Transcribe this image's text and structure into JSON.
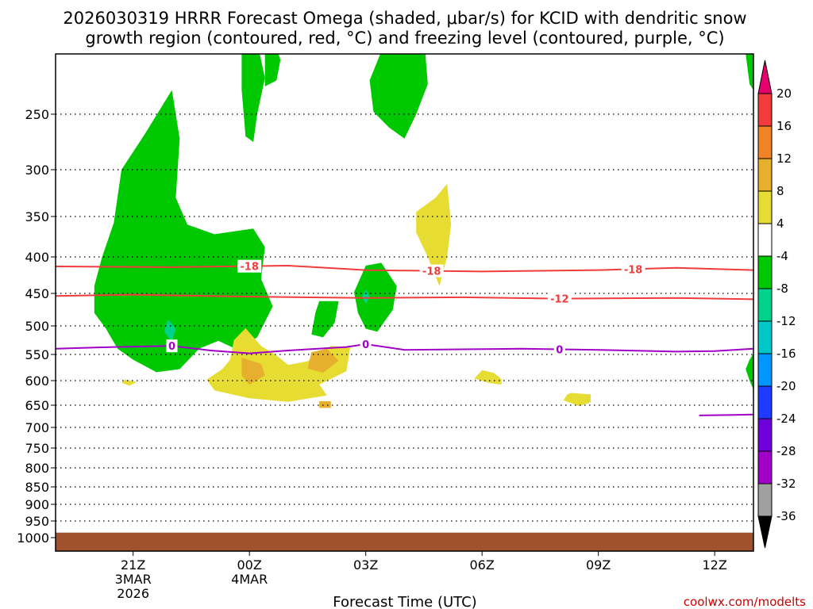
{
  "title_line1": "2026030319 HRRR Forecast Omega (shaded, μbar/s) for KCID with dendritic snow",
  "title_line2": "growth region (contoured, red, °C) and freezing level (contoured, purple, °C)",
  "xlabel": "Forecast Time (UTC)",
  "credit": "coolwx.com/modelts",
  "chart_data": {
    "type": "heatmap",
    "x_ticks": [
      {
        "label": "21Z",
        "sub1": "3MAR",
        "sub2": "2026",
        "hour": 21
      },
      {
        "label": "00Z",
        "sub1": "4MAR",
        "sub2": "",
        "hour": 24
      },
      {
        "label": "03Z",
        "sub1": "",
        "sub2": "",
        "hour": 27
      },
      {
        "label": "06Z",
        "sub1": "",
        "sub2": "",
        "hour": 30
      },
      {
        "label": "09Z",
        "sub1": "",
        "sub2": "",
        "hour": 33
      },
      {
        "label": "12Z",
        "sub1": "",
        "sub2": "",
        "hour": 36
      }
    ],
    "xlim": [
      19,
      37
    ],
    "y_ticks": [
      250,
      300,
      350,
      400,
      450,
      500,
      550,
      600,
      650,
      700,
      750,
      800,
      850,
      900,
      950,
      1000
    ],
    "ylim_hPa": [
      1000,
      200
    ],
    "colorbar": {
      "labels": [
        "20",
        "16",
        "12",
        "8",
        "4",
        "-4",
        "-8",
        "-12",
        "-16",
        "-20",
        "-24",
        "-28",
        "-32",
        "-36"
      ],
      "colors": [
        "#f03c3c",
        "#f08228",
        "#e6af2d",
        "#e6dc32",
        "#ffffff",
        "#00c800",
        "#00d28c",
        "#00c8c8",
        "#0096ff",
        "#1e3cff",
        "#6e00dc",
        "#a000c8",
        "#a0a0a0"
      ],
      "top_arrow": "#e6006e",
      "bottom_arrow": "#000000"
    },
    "omega_regions": [
      {
        "level": "-8",
        "color": "#00c800",
        "points": [
          [
            23.0,
            410
          ],
          [
            22.8,
            428
          ],
          [
            23.1,
            445
          ],
          [
            23.5,
            465
          ],
          [
            23.9,
            445
          ],
          [
            24.1,
            415
          ],
          [
            23.9,
            392
          ],
          [
            23.2,
            390
          ]
        ]
      },
      {
        "level": "-8",
        "color": "#00c800",
        "points": [
          [
            20.5,
            358
          ],
          [
            20.7,
            300
          ],
          [
            21.3,
            268
          ],
          [
            22.0,
            230
          ],
          [
            22.2,
            272
          ],
          [
            22.1,
            330
          ],
          [
            22.4,
            360
          ],
          [
            23.1,
            372
          ],
          [
            24.1,
            365
          ],
          [
            24.4,
            388
          ],
          [
            24.3,
            430
          ],
          [
            24.6,
            470
          ],
          [
            24.2,
            520
          ],
          [
            23.7,
            542
          ],
          [
            23.2,
            526
          ],
          [
            22.7,
            540
          ],
          [
            22.2,
            578
          ],
          [
            21.6,
            584
          ],
          [
            21.0,
            560
          ],
          [
            20.6,
            540
          ],
          [
            20.3,
            505
          ],
          [
            20.0,
            480
          ],
          [
            20.0,
            440
          ],
          [
            20.2,
            400
          ]
        ]
      },
      {
        "level": "-8",
        "color": "#00c800",
        "points": [
          [
            23.9,
            140
          ],
          [
            24.1,
            150
          ],
          [
            24.2,
            190
          ],
          [
            24.4,
            220
          ],
          [
            24.2,
            250
          ],
          [
            24.1,
            275
          ],
          [
            23.9,
            270
          ],
          [
            23.8,
            230
          ],
          [
            23.8,
            180
          ]
        ]
      },
      {
        "level": "-8",
        "color": "#00c800",
        "points": [
          [
            24.7,
            195
          ],
          [
            24.8,
            205
          ],
          [
            24.7,
            222
          ],
          [
            24.4,
            227
          ],
          [
            24.4,
            200
          ]
        ]
      },
      {
        "level": "-8",
        "color": "#00c800",
        "points": [
          [
            25.8,
            462
          ],
          [
            26.3,
            462
          ],
          [
            26.2,
            495
          ],
          [
            25.9,
            520
          ],
          [
            25.6,
            515
          ],
          [
            25.7,
            480
          ]
        ]
      },
      {
        "level": "-8",
        "color": "#00c800",
        "points": [
          [
            26.7,
            448
          ],
          [
            27.0,
            412
          ],
          [
            27.4,
            408
          ],
          [
            27.8,
            440
          ],
          [
            27.7,
            475
          ],
          [
            27.3,
            510
          ],
          [
            27.0,
            505
          ],
          [
            26.8,
            480
          ]
        ]
      },
      {
        "level": "-8",
        "color": "#00c800",
        "points": [
          [
            27.1,
            222
          ],
          [
            27.6,
            182
          ],
          [
            28.2,
            150
          ],
          [
            28.5,
            185
          ],
          [
            28.6,
            225
          ],
          [
            28.3,
            250
          ],
          [
            28.0,
            272
          ],
          [
            27.6,
            262
          ],
          [
            27.2,
            248
          ]
        ]
      },
      {
        "level": "-8",
        "color": "#00c800",
        "points": [
          [
            36.9,
            180
          ],
          [
            37.0,
            180
          ],
          [
            37.0,
            230
          ],
          [
            36.9,
            225
          ],
          [
            36.8,
            200
          ]
        ]
      },
      {
        "level": "-8",
        "color": "#00c800",
        "points": [
          [
            37.0,
            548
          ],
          [
            36.9,
            560
          ],
          [
            36.8,
            578
          ],
          [
            36.9,
            600
          ],
          [
            37.0,
            618
          ]
        ]
      },
      {
        "level": "-12",
        "color": "#00d28c",
        "points": [
          [
            21.9,
            490
          ],
          [
            22.1,
            505
          ],
          [
            22.0,
            528
          ],
          [
            21.8,
            510
          ]
        ]
      },
      {
        "level": "-12",
        "color": "#00d28c",
        "points": [
          [
            27.0,
            445
          ],
          [
            27.1,
            455
          ],
          [
            27.0,
            466
          ],
          [
            26.9,
            456
          ]
        ]
      },
      {
        "level": "4",
        "color": "#e6dc32",
        "points": [
          [
            20.8,
            598
          ],
          [
            21.1,
            603
          ],
          [
            20.9,
            610
          ],
          [
            20.7,
            604
          ]
        ]
      },
      {
        "level": "4",
        "color": "#e6dc32",
        "points": [
          [
            23.9,
            504
          ],
          [
            24.3,
            535
          ],
          [
            24.7,
            552
          ],
          [
            25.0,
            570
          ],
          [
            25.5,
            563
          ],
          [
            26.1,
            535
          ],
          [
            26.6,
            538
          ],
          [
            26.5,
            582
          ],
          [
            25.8,
            608
          ],
          [
            26.0,
            630
          ],
          [
            25.0,
            643
          ],
          [
            24.0,
            636
          ],
          [
            23.1,
            620
          ],
          [
            22.9,
            598
          ],
          [
            23.3,
            578
          ],
          [
            23.5,
            560
          ],
          [
            23.6,
            525
          ]
        ]
      },
      {
        "level": "4",
        "color": "#e6dc32",
        "points": [
          [
            28.3,
            345
          ],
          [
            28.8,
            330
          ],
          [
            29.1,
            315
          ],
          [
            29.2,
            360
          ],
          [
            29.1,
            400
          ],
          [
            28.9,
            440
          ],
          [
            28.6,
            400
          ],
          [
            28.3,
            370
          ]
        ]
      },
      {
        "level": "4",
        "color": "#e6dc32",
        "points": [
          [
            30.0,
            580
          ],
          [
            30.3,
            585
          ],
          [
            30.5,
            597
          ],
          [
            30.5,
            608
          ],
          [
            30.2,
            605
          ],
          [
            29.8,
            596
          ]
        ]
      },
      {
        "level": "4",
        "color": "#e6dc32",
        "points": [
          [
            32.3,
            625
          ],
          [
            32.8,
            628
          ],
          [
            32.8,
            644
          ],
          [
            32.5,
            652
          ],
          [
            32.1,
            640
          ],
          [
            32.2,
            628
          ]
        ]
      },
      {
        "level": "8",
        "color": "#e6af2d",
        "points": [
          [
            23.8,
            556
          ],
          [
            24.3,
            568
          ],
          [
            24.4,
            590
          ],
          [
            24.0,
            608
          ],
          [
            23.8,
            590
          ]
        ]
      },
      {
        "level": "8",
        "color": "#e6af2d",
        "points": [
          [
            25.6,
            546
          ],
          [
            26.0,
            540
          ],
          [
            26.3,
            562
          ],
          [
            25.9,
            585
          ],
          [
            25.5,
            577
          ]
        ]
      },
      {
        "level": "8",
        "color": "#e6af2d",
        "points": [
          [
            25.8,
            642
          ],
          [
            26.1,
            642
          ],
          [
            26.1,
            656
          ],
          [
            25.8,
            656
          ]
        ]
      }
    ],
    "contours": [
      {
        "label": "-18",
        "color": "#f03c3c",
        "points": [
          [
            19,
            413
          ],
          [
            22,
            414
          ],
          [
            25,
            412
          ],
          [
            27,
            418
          ],
          [
            30,
            420
          ],
          [
            33,
            418
          ],
          [
            35,
            415
          ],
          [
            37,
            418
          ]
        ],
        "label_x": [
          24.0,
          28.7,
          33.9
        ]
      },
      {
        "label": "-12",
        "color": "#f03c3c",
        "points": [
          [
            19,
            454
          ],
          [
            21,
            452
          ],
          [
            24,
            455
          ],
          [
            27,
            457
          ],
          [
            29.5,
            456
          ],
          [
            32,
            458
          ],
          [
            35,
            457
          ],
          [
            37,
            459
          ]
        ],
        "label_x": [
          32.0
        ]
      },
      {
        "label": "0",
        "color": "#a000c8",
        "points": [
          [
            19,
            540
          ],
          [
            20.5,
            537
          ],
          [
            22,
            535
          ],
          [
            23,
            543
          ],
          [
            24,
            548
          ],
          [
            25,
            543
          ],
          [
            26.5,
            537
          ],
          [
            27,
            532
          ],
          [
            28,
            542
          ],
          [
            29.5,
            541
          ],
          [
            31,
            540
          ],
          [
            33,
            542
          ],
          [
            35,
            545
          ],
          [
            36,
            544
          ],
          [
            37,
            540
          ]
        ],
        "label_x": [
          22.0,
          27.0,
          32.0
        ]
      },
      {
        "label": "",
        "color": "#a000c8",
        "points": [
          [
            35.6,
            673
          ],
          [
            36.5,
            672
          ],
          [
            37.0,
            671
          ]
        ],
        "label_x": []
      }
    ],
    "ground": {
      "color": "#a0522d",
      "from_hPa": 985
    }
  }
}
